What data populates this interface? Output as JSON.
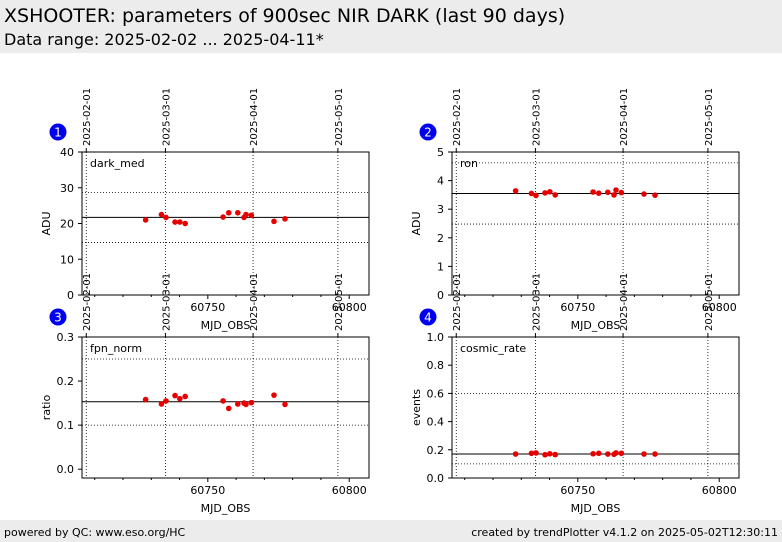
{
  "header": {
    "title": "XSHOOTER: parameters of 900sec NIR DARK (last 90 days)",
    "subtitle": "Data range: 2025-02-02 ... 2025-04-11*"
  },
  "footer": {
    "left": "powered by QC: www.eso.org/HC",
    "right": "created by trendPlotter v4.1.2 on 2025-05-02T12:30:11"
  },
  "colors": {
    "points": "#e60000",
    "badge": "#0000ee",
    "header_bg": "#ececec"
  },
  "chart_data": [
    {
      "type": "scatter",
      "panel_number": "1",
      "label": "dark_med",
      "xlabel": "MJD_OBS",
      "ylabel": "ADU",
      "xlim": [
        60705.5,
        60807
      ],
      "ylim": [
        0,
        40
      ],
      "yticks": [
        0,
        10,
        20,
        30,
        40
      ],
      "ytick_labels": [
        "0",
        "10",
        "20",
        "30",
        "40"
      ],
      "xticks": [
        60750,
        60800
      ],
      "xtick_labels": [
        "60750",
        "60800"
      ],
      "date_ticks": [
        60707,
        60735,
        60766,
        60796
      ],
      "date_labels": [
        "2025-02-01",
        "2025-03-01",
        "2025-04-01",
        "2025-05-01"
      ],
      "ref_line": 21.7,
      "limits": [
        14.7,
        28.7
      ],
      "x": [
        60728,
        60733.6,
        60735.2,
        60738.4,
        60740.1,
        60742,
        60755.4,
        60757.4,
        60760.6,
        60762.8,
        60763.5,
        60765.4,
        60773.4,
        60777.3
      ],
      "y": [
        21.0,
        22.5,
        21.7,
        20.4,
        20.4,
        20.0,
        21.8,
        23.0,
        23.0,
        21.7,
        22.5,
        22.3,
        20.6,
        21.3
      ]
    },
    {
      "type": "scatter",
      "panel_number": "2",
      "label": "ron",
      "xlabel": "MJD_OBS",
      "ylabel": "ADU",
      "xlim": [
        60705.5,
        60807
      ],
      "ylim": [
        0,
        5
      ],
      "yticks": [
        0,
        1,
        2,
        3,
        4,
        5
      ],
      "ytick_labels": [
        "0",
        "1",
        "2",
        "3",
        "4",
        "5"
      ],
      "xticks": [
        60750,
        60800
      ],
      "xtick_labels": [
        "60750",
        "60800"
      ],
      "date_ticks": [
        60707,
        60735,
        60766,
        60796
      ],
      "date_labels": [
        "2025-02-01",
        "2025-03-01",
        "2025-04-01",
        "2025-05-01"
      ],
      "ref_line": 3.55,
      "limits": [
        2.48,
        4.62
      ],
      "x": [
        60728,
        60733.6,
        60735.2,
        60738.4,
        60740.1,
        60742,
        60755.4,
        60757.4,
        60760.6,
        60762.8,
        60763.5,
        60765.4,
        60773.4,
        60777.3
      ],
      "y": [
        3.64,
        3.55,
        3.48,
        3.57,
        3.61,
        3.5,
        3.6,
        3.56,
        3.59,
        3.5,
        3.67,
        3.58,
        3.53,
        3.49
      ]
    },
    {
      "type": "scatter",
      "panel_number": "3",
      "label": "fpn_norm",
      "xlabel": "MJD_OBS",
      "ylabel": "ratio",
      "xlim": [
        60705.5,
        60807
      ],
      "ylim": [
        -0.02,
        0.3
      ],
      "yticks": [
        0.0,
        0.1,
        0.2,
        0.3
      ],
      "ytick_labels": [
        "0.0",
        "0.1",
        "0.2",
        "0.3"
      ],
      "xticks": [
        60750,
        60800
      ],
      "xtick_labels": [
        "60750",
        "60800"
      ],
      "date_ticks": [
        60707,
        60735,
        60766,
        60796
      ],
      "date_labels": [
        "2025-02-01",
        "2025-03-01",
        "2025-04-01",
        "2025-05-01"
      ],
      "ref_line": 0.153,
      "limits": [
        0.1,
        0.25
      ],
      "x": [
        60728,
        60733.6,
        60735.2,
        60738.4,
        60740.1,
        60742,
        60755.4,
        60757.4,
        60760.6,
        60762.8,
        60763.5,
        60765.4,
        60773.4,
        60777.3
      ],
      "y": [
        0.158,
        0.148,
        0.155,
        0.167,
        0.16,
        0.165,
        0.155,
        0.138,
        0.148,
        0.15,
        0.147,
        0.151,
        0.168,
        0.147
      ]
    },
    {
      "type": "scatter",
      "panel_number": "4",
      "label": "cosmic_rate",
      "xlabel": "MJD_OBS",
      "ylabel": "events",
      "xlim": [
        60705.5,
        60807
      ],
      "ylim": [
        0,
        1.0
      ],
      "yticks": [
        0,
        0.2,
        0.4,
        0.6,
        0.8,
        1.0
      ],
      "ytick_labels": [
        "0.0",
        "0.2",
        "0.4",
        "0.6",
        "0.8",
        "1.0"
      ],
      "xticks": [
        60750,
        60800
      ],
      "xtick_labels": [
        "60750",
        "60800"
      ],
      "date_ticks": [
        60707,
        60735,
        60766,
        60796
      ],
      "date_labels": [
        "2025-02-01",
        "2025-03-01",
        "2025-04-01",
        "2025-05-01"
      ],
      "ref_line": 0.17,
      "limits": [
        0.1,
        0.6
      ],
      "x": [
        60728,
        60733.6,
        60735.2,
        60738.4,
        60740.1,
        60742,
        60755.4,
        60757.4,
        60760.6,
        60762.8,
        60763.5,
        60765.4,
        60773.4,
        60777.3
      ],
      "y": [
        0.17,
        0.175,
        0.178,
        0.165,
        0.172,
        0.166,
        0.172,
        0.175,
        0.17,
        0.168,
        0.178,
        0.175,
        0.17,
        0.17
      ]
    }
  ]
}
